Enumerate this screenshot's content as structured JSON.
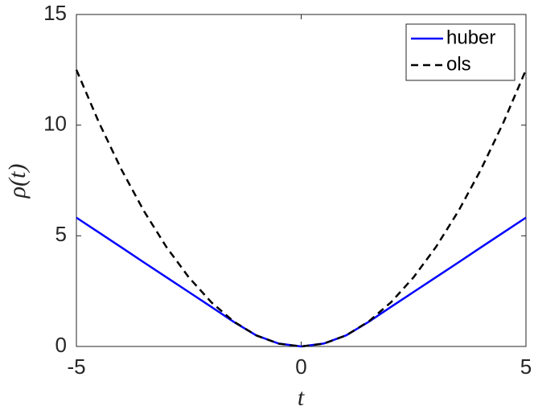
{
  "chart_data": {
    "type": "line",
    "xlabel": "t",
    "ylabel": "ρ(t)",
    "x": [
      -5,
      -4.5,
      -4,
      -3.5,
      -3,
      -2.5,
      -2,
      -1.5,
      -1,
      -0.5,
      0,
      0.5,
      1,
      1.5,
      2,
      2.5,
      3,
      3.5,
      4,
      4.5,
      5
    ],
    "series": [
      {
        "name": "huber",
        "color": "#0000ff",
        "style": "solid",
        "values": [
          5.82,
          5.15,
          4.48,
          3.8,
          3.13,
          2.46,
          1.79,
          1.11,
          0.5,
          0.13,
          0,
          0.13,
          0.5,
          1.11,
          1.79,
          2.46,
          3.13,
          3.8,
          4.48,
          5.15,
          5.82
        ]
      },
      {
        "name": "ols",
        "color": "#000000",
        "style": "dashed",
        "values": [
          12.5,
          10.125,
          8,
          6.125,
          4.5,
          3.125,
          2,
          1.125,
          0.5,
          0.125,
          0,
          0.125,
          0.5,
          1.125,
          2,
          3.125,
          4.5,
          6.125,
          8,
          10.125,
          12.5
        ]
      }
    ],
    "xlim": [
      -5,
      5
    ],
    "xticks": [
      -5,
      0,
      5
    ],
    "ylim": [
      0,
      15
    ],
    "yticks": [
      0,
      5,
      10,
      15
    ],
    "legend": "upper right"
  }
}
